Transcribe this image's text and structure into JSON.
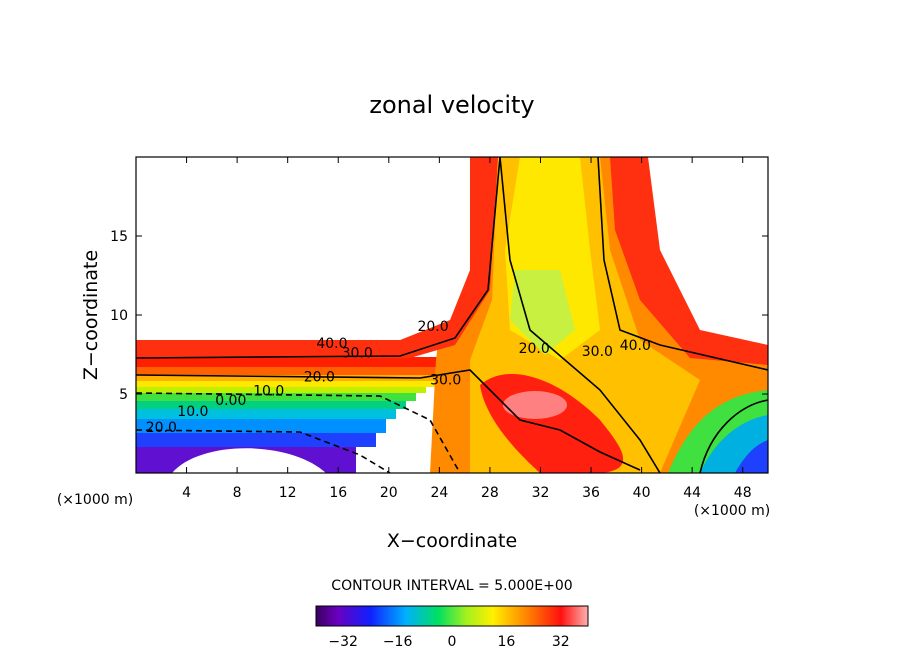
{
  "chart_data": {
    "type": "heatmap",
    "title": "zonal velocity",
    "xlabel": "X−coordinate",
    "ylabel": "Z−coordinate",
    "xlim": [
      0,
      50
    ],
    "ylim": [
      0,
      20
    ],
    "x_ticks": [
      4,
      8,
      12,
      16,
      20,
      24,
      28,
      32,
      36,
      40,
      44,
      48
    ],
    "y_ticks": [
      5,
      10,
      15
    ],
    "x_unit": "(×1000 m)",
    "y_unit": "(×1000 m)",
    "contour_interval_text": "CONTOUR INTERVAL = 5.000E+00",
    "contour_interval": 5.0,
    "colorbar": {
      "min": -40,
      "max": 40,
      "ticks": [
        "−32",
        "−16",
        "0",
        "16",
        "32"
      ]
    },
    "masked_regions": [
      "upper-left terrain (no data)",
      "surface bump near x=8-16"
    ],
    "contour_labels": [
      {
        "text": "40.0",
        "x": 15.5,
        "z": 7.9
      },
      {
        "text": "30.0",
        "x": 17.5,
        "z": 7.3
      },
      {
        "text": "20.0",
        "x": 14.5,
        "z": 5.8
      },
      {
        "text": "10.0",
        "x": 10.5,
        "z": 4.9
      },
      {
        "text": "0.00",
        "x": 7.5,
        "z": 4.3
      },
      {
        "text": "10.0",
        "x": 4.5,
        "z": 3.6
      },
      {
        "text": "20.0",
        "x": 2.0,
        "z": 2.6
      },
      {
        "text": "20.0",
        "x": 23.5,
        "z": 9.0
      },
      {
        "text": "30.0",
        "x": 24.5,
        "z": 5.6
      },
      {
        "text": "20.0",
        "x": 31.5,
        "z": 7.6
      },
      {
        "text": "30.0",
        "x": 36.5,
        "z": 7.4
      },
      {
        "text": "40.0",
        "x": 39.5,
        "z": 7.8
      }
    ]
  }
}
